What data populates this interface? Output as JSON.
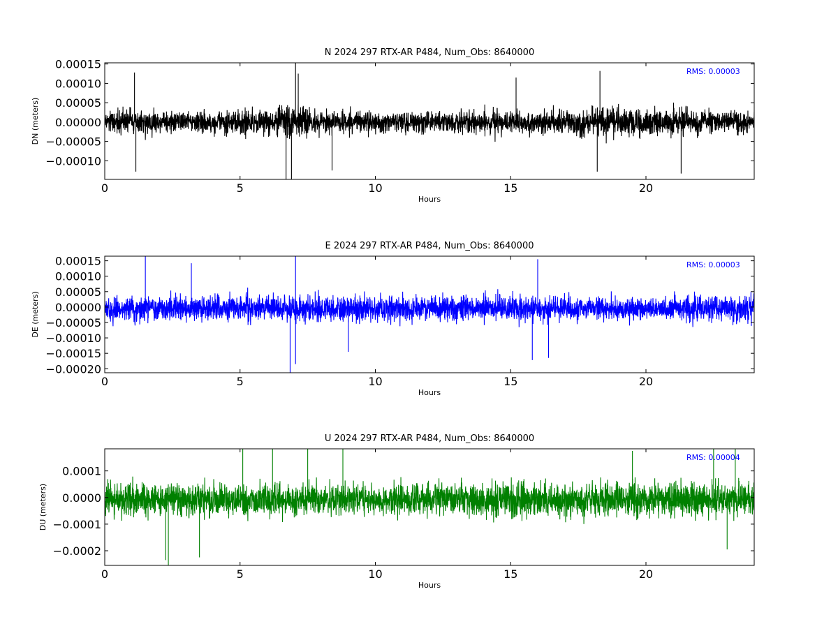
{
  "chart_data": [
    {
      "type": "line",
      "title": "N 2024 297 RTX-AR  P484, Num_Obs: 8640000",
      "xlabel": "Hours",
      "ylabel": "DN (meters)",
      "color": "#000000",
      "xlim": [
        0,
        24
      ],
      "ylim": [
        -0.000148,
        0.000153
      ],
      "x_ticks": [
        0,
        5,
        10,
        15,
        20
      ],
      "x_tick_labels": [
        "0",
        "5",
        "10",
        "15",
        "20"
      ],
      "y_ticks": [
        -0.0001,
        -5e-05,
        0,
        5e-05,
        0.0001,
        0.00015
      ],
      "y_tick_labels": [
        "−0.00010",
        "−0.00005",
        "0.00000",
        "0.00005",
        "0.00010",
        "0.00015"
      ],
      "annotation": "RMS:  0.00003",
      "annotation_color": "#0000ff",
      "noise": {
        "mean": 0.0,
        "base_amplitude": 5.2e-05,
        "seed": 11,
        "envelope": [
          [
            0,
            1.0
          ],
          [
            1,
            1.2
          ],
          [
            2,
            0.95
          ],
          [
            4,
            0.95
          ],
          [
            6,
            1.05
          ],
          [
            7,
            1.45
          ],
          [
            8,
            1.0
          ],
          [
            12,
            0.95
          ],
          [
            15,
            1.05
          ],
          [
            17,
            1.05
          ],
          [
            18,
            1.3
          ],
          [
            21,
            1.25
          ],
          [
            22,
            1.05
          ],
          [
            24,
            0.95
          ]
        ],
        "spikes": [
          [
            1.1,
            0.000128
          ],
          [
            1.15,
            -0.000128
          ],
          [
            6.7,
            -0.000148
          ],
          [
            6.9,
            -0.000148
          ],
          [
            7.05,
            0.000153
          ],
          [
            7.15,
            0.000125
          ],
          [
            15.2,
            0.000115
          ],
          [
            18.3,
            0.000132
          ],
          [
            18.2,
            -0.000128
          ],
          [
            21.3,
            -0.000133
          ],
          [
            8.4,
            -0.000125
          ]
        ]
      }
    },
    {
      "type": "line",
      "title": "E 2024 297 RTX-AR  P484, Num_Obs: 8640000",
      "xlabel": "Hours",
      "ylabel": "DE (meters)",
      "color": "#0000ff",
      "xlim": [
        0,
        24
      ],
      "ylim": [
        -0.000213,
        0.000165
      ],
      "x_ticks": [
        0,
        5,
        10,
        15,
        20
      ],
      "x_tick_labels": [
        "0",
        "5",
        "10",
        "15",
        "20"
      ],
      "y_ticks": [
        -0.0002,
        -0.00015,
        -0.0001,
        -5e-05,
        0,
        5e-05,
        0.0001,
        0.00015
      ],
      "y_tick_labels": [
        "−0.00020",
        "−0.00015",
        "−0.00010",
        "−0.00005",
        "0.00000",
        "0.00005",
        "0.00010",
        "0.00015"
      ],
      "annotation": "RMS:  0.00003",
      "annotation_color": "#0000ff",
      "noise": {
        "mean": -5e-06,
        "base_amplitude": 7.5e-05,
        "seed": 23,
        "envelope": [
          [
            0,
            1.0
          ],
          [
            2,
            1.0
          ],
          [
            6,
            1.05
          ],
          [
            7,
            1.15
          ],
          [
            12,
            0.95
          ],
          [
            16,
            1.05
          ],
          [
            19,
            0.9
          ],
          [
            20.5,
            0.85
          ],
          [
            21.5,
            1.05
          ],
          [
            24,
            1.1
          ]
        ],
        "spikes": [
          [
            1.5,
            0.000165
          ],
          [
            6.85,
            -0.000213
          ],
          [
            7.05,
            0.000165
          ],
          [
            7.05,
            -0.000185
          ],
          [
            16.0,
            0.000155
          ],
          [
            15.8,
            -0.000172
          ],
          [
            16.4,
            -0.000165
          ],
          [
            3.2,
            0.000142
          ],
          [
            9.0,
            -0.000145
          ]
        ]
      }
    },
    {
      "type": "line",
      "title": "U 2024 297 RTX-AR  P484, Num_Obs: 8640000",
      "xlabel": "Hours",
      "ylabel": "DU (meters)",
      "color": "#008000",
      "xlim": [
        0,
        24
      ],
      "ylim": [
        -0.000255,
        0.000183
      ],
      "x_ticks": [
        0,
        5,
        10,
        15,
        20
      ],
      "x_tick_labels": [
        "0",
        "5",
        "10",
        "15",
        "20"
      ],
      "y_ticks": [
        -0.0002,
        -0.0001,
        0,
        0.0001
      ],
      "y_tick_labels": [
        "−0.0002",
        "−0.0001",
        "0.0000",
        "0.0001"
      ],
      "annotation": "RMS:  0.00004",
      "annotation_color": "#0000ff",
      "noise": {
        "mean": -8e-06,
        "base_amplitude": 0.000115,
        "seed": 37,
        "envelope": [
          [
            0,
            1.0
          ],
          [
            5,
            1.0
          ],
          [
            10,
            0.95
          ],
          [
            15,
            1.0
          ],
          [
            20,
            1.0
          ],
          [
            24,
            1.05
          ]
        ],
        "spikes": [
          [
            2.35,
            -0.000255
          ],
          [
            2.25,
            -0.000235
          ],
          [
            3.5,
            -0.000225
          ],
          [
            5.1,
            0.000183
          ],
          [
            6.2,
            0.000183
          ],
          [
            7.5,
            0.000183
          ],
          [
            8.8,
            0.000183
          ],
          [
            19.5,
            0.000175
          ],
          [
            22.5,
            0.000183
          ],
          [
            23.3,
            0.000183
          ],
          [
            23.0,
            -0.000195
          ]
        ]
      }
    }
  ]
}
